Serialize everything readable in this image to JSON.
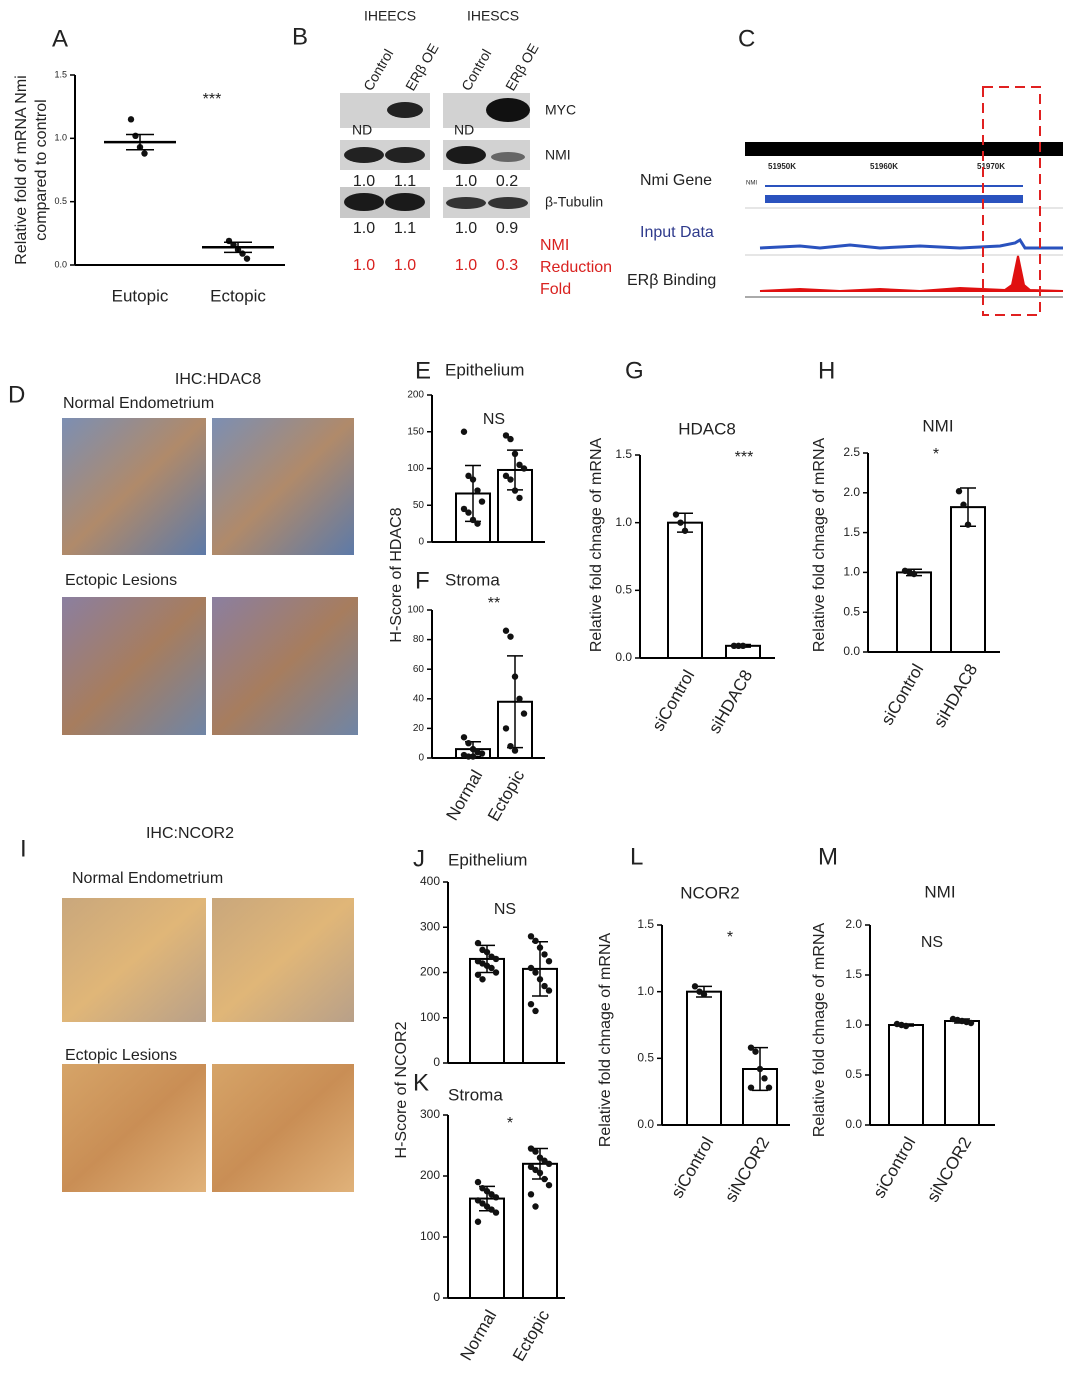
{
  "blot": {
    "panel": "B",
    "cells": [
      "IHEECS",
      "IHESCS"
    ],
    "lanes": [
      "Control",
      "ERβ OE",
      "Control",
      "ERβ OE"
    ],
    "rows": [
      "MYC",
      "NMI",
      "β-Tubulin"
    ],
    "nd": [
      "ND",
      "ND"
    ],
    "nmi_quant": [
      "1.0",
      "1.1",
      "1.0",
      "0.2"
    ],
    "tubulin_quant": [
      "1.0",
      "1.1",
      "1.0",
      "0.9"
    ],
    "reduction": [
      "1.0",
      "1.0",
      "1.0",
      "0.3"
    ],
    "reduction_label": [
      "NMI",
      "Reduction",
      "Fold"
    ]
  },
  "tracks": {
    "panel": "C",
    "labels": [
      "Nmi Gene",
      "Input Data",
      "ERβ Binding"
    ],
    "coords": [
      "51950K",
      "51960K",
      "51970K"
    ],
    "gene": "NMI"
  },
  "ihc": [
    {
      "panel": "D",
      "title": "IHC:HDAC8",
      "groups": [
        "Normal Endometrium",
        "Ectopic Lesions"
      ]
    },
    {
      "panel": "I",
      "title": "IHC:NCOR2",
      "groups": [
        "Normal Endometrium",
        "Ectopic Lesions"
      ]
    }
  ],
  "chart_data": [
    {
      "type": "dot",
      "panel": "A",
      "ylabel": [
        "Relative fold of mRNA Nmi",
        "compared to control"
      ],
      "annotation": "***",
      "categories": [
        "Eutopic",
        "Ectopic"
      ],
      "values": [
        0.97,
        0.14
      ],
      "errors": [
        0.06,
        0.04
      ],
      "points": [
        [
          1.15,
          1.02,
          0.93,
          0.88
        ],
        [
          0.19,
          0.16,
          0.12,
          0.09,
          0.05
        ]
      ],
      "ylim": [
        0,
        1.5
      ],
      "yticks": [
        {
          "value": 0,
          "label": "0.0"
        },
        {
          "value": 0.5,
          "label": "0.5"
        },
        {
          "value": 1,
          "label": "1.0"
        },
        {
          "value": 1.5,
          "label": "1.5"
        }
      ],
      "color": "#000000"
    },
    {
      "type": "bar",
      "panel": "E",
      "title": "Epithelium",
      "ylabel": "H-Score of HDAC8",
      "annotation": "NS",
      "categories": [
        null,
        null
      ],
      "values": [
        66,
        98
      ],
      "errors": [
        38,
        27
      ],
      "points": [
        [
          150,
          90,
          85,
          70,
          55,
          45,
          40,
          30,
          25
        ],
        [
          145,
          140,
          120,
          105,
          100,
          90,
          85,
          70,
          60
        ]
      ],
      "ylim": [
        0,
        200
      ],
      "yticks": [
        0,
        50,
        100,
        150,
        200
      ],
      "color": "#ffffff"
    },
    {
      "type": "bar",
      "panel": "F",
      "title": "Stroma",
      "annotation": "**",
      "categories": [
        "Normal",
        "Ectopic"
      ],
      "values": [
        6,
        38
      ],
      "errors": [
        5,
        31
      ],
      "points": [
        [
          14,
          10,
          6,
          4,
          3,
          2,
          1,
          1
        ],
        [
          86,
          82,
          55,
          40,
          30,
          20,
          8,
          5
        ]
      ],
      "ylim": [
        0,
        100
      ],
      "yticks": [
        0,
        20,
        40,
        60,
        80,
        100
      ],
      "color": "#ffffff"
    },
    {
      "type": "bar",
      "panel": "G",
      "title": "HDAC8",
      "ylabel": "Relative fold chnage of mRNA",
      "annotation": "***",
      "categories": [
        "siControl",
        "siHDAC8"
      ],
      "values": [
        1.0,
        0.09
      ],
      "errors": [
        0.07,
        0.01
      ],
      "points": [
        [
          1.06,
          1.0,
          0.94
        ],
        [
          0.09,
          0.09,
          0.09
        ]
      ],
      "ylim": [
        0,
        1.5
      ],
      "yticks": [
        {
          "value": 0,
          "label": "0.0"
        },
        {
          "value": 0.5,
          "label": "0.5"
        },
        {
          "value": 1,
          "label": "1.0"
        },
        {
          "value": 1.5,
          "label": "1.5"
        }
      ],
      "color": "#ffffff"
    },
    {
      "type": "bar",
      "panel": "H",
      "title": "NMI",
      "ylabel": "Relative fold chnage of mRNA",
      "annotation": "*",
      "categories": [
        "siControl",
        "siHDAC8"
      ],
      "values": [
        1.0,
        1.82
      ],
      "errors": [
        0.04,
        0.24
      ],
      "points": [
        [
          1.02,
          1.0,
          0.98
        ],
        [
          2.02,
          1.85,
          1.6
        ]
      ],
      "ylim": [
        0,
        2.5
      ],
      "yticks": [
        {
          "value": 0,
          "label": "0.0"
        },
        {
          "value": 0.5,
          "label": "0.5"
        },
        {
          "value": 1,
          "label": "1.0"
        },
        {
          "value": 1.5,
          "label": "1.5"
        },
        {
          "value": 2,
          "label": "2.0"
        },
        {
          "value": 2.5,
          "label": "2.5"
        }
      ],
      "color": "#ffffff"
    },
    {
      "type": "bar",
      "panel": "J",
      "title": "Epithelium",
      "ylabel": "H-Score of NCOR2",
      "annotation": "NS",
      "categories": [
        null,
        null
      ],
      "values": [
        230,
        208
      ],
      "errors": [
        30,
        60
      ],
      "points": [
        [
          265,
          250,
          245,
          235,
          230,
          225,
          220,
          215,
          210,
          200,
          195,
          185
        ],
        [
          280,
          270,
          255,
          240,
          225,
          210,
          200,
          185,
          170,
          160,
          130,
          115
        ]
      ],
      "ylim": [
        0,
        400
      ],
      "yticks": [
        0,
        100,
        200,
        300,
        400
      ],
      "color": "#ffffff"
    },
    {
      "type": "bar",
      "panel": "K",
      "title": "Stroma",
      "annotation": "*",
      "categories": [
        "Normal",
        "Ectopic"
      ],
      "values": [
        163,
        220
      ],
      "errors": [
        20,
        25
      ],
      "points": [
        [
          190,
          180,
          175,
          170,
          165,
          160,
          155,
          150,
          145,
          140,
          125
        ],
        [
          245,
          240,
          230,
          225,
          220,
          215,
          210,
          205,
          195,
          185,
          170,
          150
        ]
      ],
      "ylim": [
        0,
        300
      ],
      "yticks": [
        0,
        100,
        200,
        300
      ],
      "color": "#ffffff"
    },
    {
      "type": "bar",
      "panel": "L",
      "title": "NCOR2",
      "ylabel": "Relative fold chnage of mRNA",
      "annotation": "*",
      "categories": [
        "siControl",
        "siNCOR2"
      ],
      "values": [
        1.0,
        0.42
      ],
      "errors": [
        0.04,
        0.16
      ],
      "points": [
        [
          1.04,
          1.0,
          0.98
        ],
        [
          0.58,
          0.55,
          0.42,
          0.35,
          0.28,
          0.28
        ]
      ],
      "ylim": [
        0,
        1.5
      ],
      "yticks": [
        {
          "value": 0,
          "label": "0.0"
        },
        {
          "value": 0.5,
          "label": "0.5"
        },
        {
          "value": 1,
          "label": "1.0"
        },
        {
          "value": 1.5,
          "label": "1.5"
        }
      ],
      "color": "#ffffff"
    },
    {
      "type": "bar",
      "panel": "M",
      "title": "NMI",
      "ylabel": "Relative fold chnage of mRNA",
      "annotation": "NS",
      "categories": [
        "siControl",
        "siNCOR2"
      ],
      "values": [
        1.0,
        1.04
      ],
      "errors": [
        0.01,
        0.02
      ],
      "points": [
        [
          1.01,
          1.0,
          0.99
        ],
        [
          1.06,
          1.05,
          1.04,
          1.03,
          1.02
        ]
      ],
      "ylim": [
        0,
        2.0
      ],
      "yticks": [
        {
          "value": 0,
          "label": "0.0"
        },
        {
          "value": 0.5,
          "label": "0.5"
        },
        {
          "value": 1,
          "label": "1.0"
        },
        {
          "value": 1.5,
          "label": "1.5"
        },
        {
          "value": 2,
          "label": "2.0"
        }
      ],
      "color": "#ffffff"
    }
  ]
}
